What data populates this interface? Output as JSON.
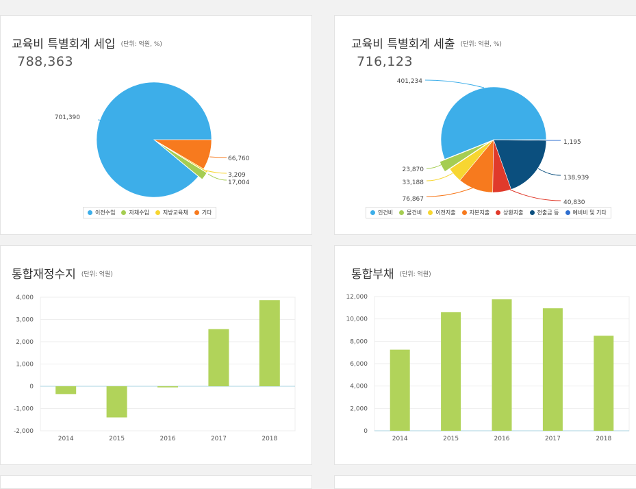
{
  "panels": {
    "revenue": {
      "title": "교육비 특별회계 세입",
      "unit": "(단위: 억원, %)",
      "total": "788,363"
    },
    "expense": {
      "title": "교육비 특별회계 세출",
      "unit": "(단위: 억원, %)",
      "total": "716,123"
    },
    "fiscal": {
      "title": "통합재정수지",
      "unit": "(단위: 억원)"
    },
    "debt": {
      "title": "통합부채",
      "unit": "(단위: 억원)"
    }
  },
  "chart_data": [
    {
      "type": "pie",
      "categories": [
        "이전수입",
        "자체수입",
        "지방교육채",
        "기타"
      ],
      "values": [
        701390,
        17004,
        3209,
        66760
      ],
      "data_labels": [
        "701,390",
        "17,004",
        "3,209",
        "66,760"
      ],
      "colors": [
        "#3daee9",
        "#a5cd52",
        "#f7d631",
        "#f77a1e"
      ],
      "legend_position": "bottom"
    },
    {
      "type": "pie",
      "categories": [
        "인건비",
        "물건비",
        "이전지출",
        "자본지출",
        "상환지출",
        "전출금 등",
        "예비비 및 기타"
      ],
      "values": [
        401234,
        23870,
        33188,
        76867,
        40830,
        138939,
        1195
      ],
      "data_labels": [
        "401,234",
        "23,870",
        "33,188",
        "76,867",
        "40,830",
        "138,939",
        "1,195"
      ],
      "colors": [
        "#3daee9",
        "#a5cd52",
        "#f7d631",
        "#f77a1e",
        "#e03a2b",
        "#0b4f7e",
        "#2f6fd0"
      ],
      "legend_position": "bottom"
    },
    {
      "type": "bar",
      "categories": [
        "2014",
        "2015",
        "2016",
        "2017",
        "2018"
      ],
      "values": [
        -350,
        -1400,
        -50,
        2570,
        3870
      ],
      "ylim": [
        -2000,
        4000
      ],
      "yticks": [
        "4,000",
        "3,000",
        "2,000",
        "1,000",
        "0",
        "-1,000",
        "-2,000"
      ],
      "color": "#b1d35a",
      "grid": true
    },
    {
      "type": "bar",
      "categories": [
        "2014",
        "2015",
        "2016",
        "2017",
        "2018"
      ],
      "values": [
        7250,
        10600,
        11750,
        10950,
        8500
      ],
      "ylim": [
        0,
        12000
      ],
      "yticks": [
        "12,000",
        "10,000",
        "8,000",
        "6,000",
        "4,000",
        "2,000",
        "0"
      ],
      "color": "#b1d35a",
      "grid": true
    }
  ]
}
